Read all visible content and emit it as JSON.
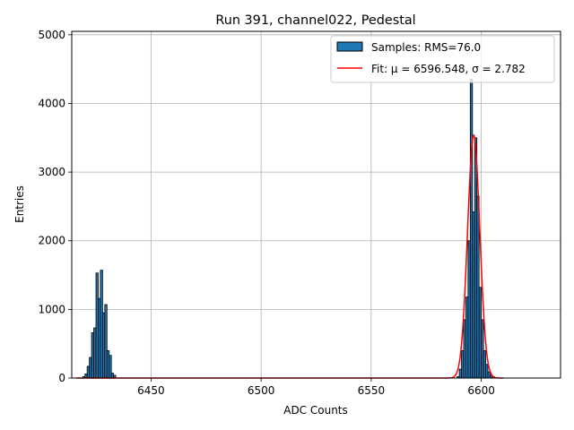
{
  "chart_data": {
    "type": "bar",
    "title": "Run 391, channel022, Pedestal",
    "xlabel": "ADC Counts",
    "ylabel": "Entries",
    "xlim": [
      6414,
      6636
    ],
    "ylim": [
      0,
      5050
    ],
    "xticks": [
      6450,
      6500,
      6550,
      6600
    ],
    "yticks": [
      0,
      1000,
      2000,
      3000,
      4000,
      5000
    ],
    "grid": true,
    "legend_position": "top-right",
    "series": [
      {
        "name": "Samples: RMS=76.0",
        "kind": "histogram",
        "color": "#1f77b4",
        "edgecolor": "#000000",
        "bin_width": 1,
        "bins": [
          {
            "x": 6419,
            "y": 20
          },
          {
            "x": 6420,
            "y": 60
          },
          {
            "x": 6421,
            "y": 170
          },
          {
            "x": 6422,
            "y": 300
          },
          {
            "x": 6423,
            "y": 660
          },
          {
            "x": 6424,
            "y": 730
          },
          {
            "x": 6425,
            "y": 1530
          },
          {
            "x": 6426,
            "y": 1160
          },
          {
            "x": 6427,
            "y": 1570
          },
          {
            "x": 6428,
            "y": 950
          },
          {
            "x": 6429,
            "y": 1070
          },
          {
            "x": 6430,
            "y": 400
          },
          {
            "x": 6431,
            "y": 330
          },
          {
            "x": 6432,
            "y": 70
          },
          {
            "x": 6433,
            "y": 40
          },
          {
            "x": 6589,
            "y": 20
          },
          {
            "x": 6590,
            "y": 130
          },
          {
            "x": 6591,
            "y": 400
          },
          {
            "x": 6592,
            "y": 850
          },
          {
            "x": 6593,
            "y": 1180
          },
          {
            "x": 6594,
            "y": 2000
          },
          {
            "x": 6595,
            "y": 4350
          },
          {
            "x": 6596,
            "y": 2420
          },
          {
            "x": 6597,
            "y": 3500
          },
          {
            "x": 6598,
            "y": 2650
          },
          {
            "x": 6599,
            "y": 1320
          },
          {
            "x": 6600,
            "y": 850
          },
          {
            "x": 6601,
            "y": 400
          },
          {
            "x": 6602,
            "y": 200
          },
          {
            "x": 6603,
            "y": 90
          },
          {
            "x": 6604,
            "y": 40
          },
          {
            "x": 6605,
            "y": 20
          }
        ]
      },
      {
        "name": "Fit: μ = 6596.548, σ = 2.782",
        "kind": "gaussian-fit",
        "color": "#ff0000",
        "mu": 6596.548,
        "sigma": 2.782,
        "amplitude": 3540
      }
    ]
  }
}
